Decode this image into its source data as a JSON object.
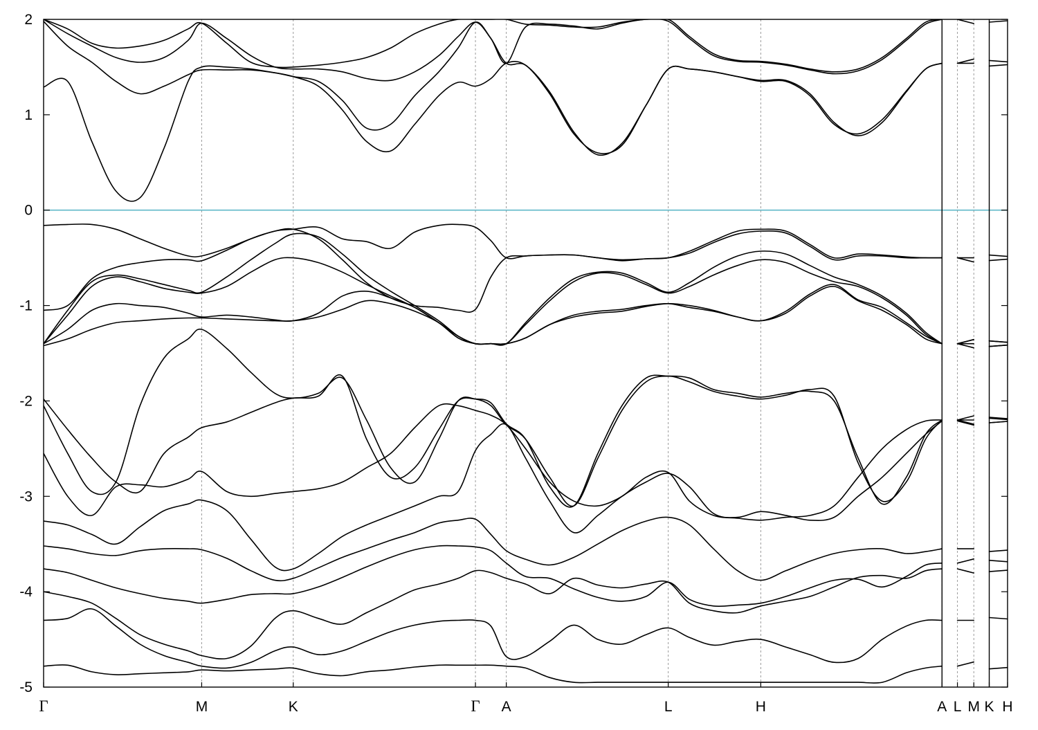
{
  "chart_data": {
    "type": "line",
    "title": "",
    "xlabel": "",
    "ylabel": "",
    "ylim": [
      -5,
      2
    ],
    "yticks": [
      "-5",
      "-4",
      "-3",
      "-2",
      "-1",
      "0",
      "1",
      "2"
    ],
    "grid": "vertical dashed lines at high-symmetry points",
    "fermi_level": {
      "y": 0,
      "color": "#5fb8c8"
    },
    "line_color": "#000000",
    "path_points": [
      {
        "label": "Γ",
        "x": 0
      },
      {
        "label": "M",
        "x": 0.164
      },
      {
        "label": "K",
        "x": 0.259
      },
      {
        "label": "Γ",
        "x": 0.448
      },
      {
        "label": "A",
        "x": 0.48
      },
      {
        "label": "L",
        "x": 0.648
      },
      {
        "label": "H",
        "x": 0.744
      },
      {
        "label": "A",
        "x": 0.932
      },
      {
        "label": "L",
        "x": 0.948
      },
      {
        "label": "M",
        "x": 0.965
      },
      {
        "label": "K",
        "x": 0.981
      },
      {
        "label": "H",
        "x": 1.0
      }
    ],
    "x": [
      0,
      0.025,
      0.05,
      0.075,
      0.1,
      0.125,
      0.15,
      0.164,
      0.19,
      0.215,
      0.24,
      0.259,
      0.285,
      0.31,
      0.335,
      0.36,
      0.385,
      0.41,
      0.43,
      0.448,
      0.464,
      0.48,
      0.5,
      0.525,
      0.55,
      0.575,
      0.6,
      0.625,
      0.648,
      0.67,
      0.695,
      0.72,
      0.744,
      0.77,
      0.795,
      0.82,
      0.845,
      0.87,
      0.895,
      0.915,
      0.932
    ],
    "series": [
      {
        "values": [
          -4.78,
          -4.77,
          -4.84,
          -4.87,
          -4.86,
          -4.85,
          -4.84,
          -4.82,
          -4.83,
          -4.82,
          -4.81,
          -4.8,
          -4.86,
          -4.88,
          -4.84,
          -4.82,
          -4.79,
          -4.77,
          -4.77,
          -4.77,
          -4.77,
          -4.78,
          -4.8,
          -4.9,
          -4.95,
          -4.95,
          -4.95,
          -4.95,
          -4.95,
          -4.95,
          -4.95,
          -4.95,
          -4.95,
          -4.95,
          -4.95,
          -4.95,
          -4.95,
          -4.95,
          -4.85,
          -4.8,
          -4.78
        ]
      },
      {
        "values": [
          -4.3,
          -4.28,
          -4.18,
          -4.36,
          -4.55,
          -4.67,
          -4.74,
          -4.78,
          -4.8,
          -4.74,
          -4.62,
          -4.58,
          -4.66,
          -4.62,
          -4.52,
          -4.42,
          -4.35,
          -4.31,
          -4.3,
          -4.3,
          -4.36,
          -4.68,
          -4.68,
          -4.52,
          -4.35,
          -4.5,
          -4.55,
          -4.45,
          -4.38,
          -4.48,
          -4.56,
          -4.52,
          -4.5,
          -4.58,
          -4.66,
          -4.74,
          -4.7,
          -4.5,
          -4.36,
          -4.3,
          -4.3
        ]
      },
      {
        "values": [
          -4.0,
          -4.05,
          -4.12,
          -4.28,
          -4.45,
          -4.55,
          -4.62,
          -4.67,
          -4.7,
          -4.57,
          -4.28,
          -4.2,
          -4.28,
          -4.34,
          -4.22,
          -4.1,
          -3.98,
          -3.92,
          -3.86,
          -3.78,
          -3.8,
          -3.86,
          -3.92,
          -4.02,
          -3.86,
          -3.93,
          -3.96,
          -3.92,
          -3.9,
          -4.12,
          -4.2,
          -4.22,
          -4.15,
          -4.1,
          -4.05,
          -3.95,
          -3.85,
          -3.83,
          -3.86,
          -3.78,
          -3.76
        ]
      },
      {
        "values": [
          -3.76,
          -3.8,
          -3.88,
          -3.96,
          -4.02,
          -4.07,
          -4.1,
          -4.12,
          -4.08,
          -4.03,
          -4.02,
          -4.02,
          -3.95,
          -3.85,
          -3.74,
          -3.64,
          -3.56,
          -3.52,
          -3.52,
          -3.53,
          -3.57,
          -3.7,
          -3.84,
          -3.86,
          -3.97,
          -4.06,
          -4.1,
          -4.05,
          -3.9,
          -4.08,
          -4.15,
          -4.14,
          -4.12,
          -4.05,
          -3.96,
          -3.88,
          -3.87,
          -3.95,
          -3.84,
          -3.72,
          -3.7
        ]
      },
      {
        "values": [
          -3.52,
          -3.55,
          -3.6,
          -3.62,
          -3.57,
          -3.55,
          -3.55,
          -3.56,
          -3.65,
          -3.78,
          -3.88,
          -3.86,
          -3.75,
          -3.64,
          -3.55,
          -3.46,
          -3.38,
          -3.28,
          -3.25,
          -3.24,
          -3.4,
          -3.57,
          -3.66,
          -3.72,
          -3.64,
          -3.5,
          -3.36,
          -3.26,
          -3.22,
          -3.3,
          -3.55,
          -3.78,
          -3.88,
          -3.78,
          -3.68,
          -3.6,
          -3.56,
          -3.55,
          -3.6,
          -3.58,
          -3.55
        ]
      },
      {
        "values": [
          -3.26,
          -3.3,
          -3.4,
          -3.5,
          -3.32,
          -3.15,
          -3.08,
          -3.04,
          -3.15,
          -3.45,
          -3.74,
          -3.76,
          -3.6,
          -3.42,
          -3.3,
          -3.2,
          -3.1,
          -3.0,
          -2.95,
          -2.52,
          -2.35,
          -2.25,
          -2.6,
          -3.05,
          -3.38,
          -3.2,
          -3.0,
          -2.85,
          -2.76,
          -2.9,
          -3.18,
          -3.22,
          -3.16,
          -3.2,
          -3.25,
          -3.22,
          -3.0,
          -2.8,
          -2.55,
          -2.35,
          -2.21
        ]
      },
      {
        "values": [
          -2.55,
          -3.0,
          -3.2,
          -2.9,
          -2.88,
          -2.9,
          -2.82,
          -2.74,
          -2.95,
          -3.0,
          -2.97,
          -2.95,
          -2.92,
          -2.85,
          -2.7,
          -2.55,
          -2.28,
          -2.05,
          -2.05,
          -2.1,
          -2.15,
          -2.25,
          -2.5,
          -2.85,
          -3.05,
          -3.1,
          -3.0,
          -2.8,
          -2.75,
          -3.05,
          -3.2,
          -3.23,
          -3.25,
          -3.22,
          -3.2,
          -3.1,
          -2.8,
          -2.5,
          -2.3,
          -2.21,
          -2.2
        ]
      },
      {
        "values": [
          -2.05,
          -2.55,
          -2.95,
          -2.85,
          -2.05,
          -1.55,
          -1.35,
          -1.25,
          -1.45,
          -1.7,
          -1.92,
          -1.97,
          -1.92,
          -1.76,
          -2.2,
          -2.7,
          -2.85,
          -2.4,
          -2.0,
          -1.98,
          -2.05,
          -2.25,
          -2.4,
          -2.8,
          -3.1,
          -2.6,
          -2.1,
          -1.8,
          -1.74,
          -1.8,
          -1.9,
          -1.95,
          -1.98,
          -1.94,
          -1.88,
          -1.95,
          -2.65,
          -3.05,
          -2.85,
          -2.4,
          -2.2
        ]
      },
      {
        "values": [
          -1.98,
          -2.3,
          -2.6,
          -2.85,
          -2.95,
          -2.55,
          -2.38,
          -2.28,
          -2.22,
          -2.12,
          -2.02,
          -1.97,
          -1.95,
          -1.74,
          -2.4,
          -2.8,
          -2.7,
          -2.3,
          -2.0,
          -1.98,
          -2.02,
          -2.24,
          -2.4,
          -2.9,
          -3.1,
          -2.55,
          -2.05,
          -1.76,
          -1.74,
          -1.76,
          -1.88,
          -1.92,
          -1.96,
          -1.92,
          -1.9,
          -2.0,
          -2.6,
          -3.08,
          -2.8,
          -2.35,
          -2.2
        ]
      },
      {
        "values": [
          -1.42,
          -1.35,
          -1.25,
          -1.18,
          -1.16,
          -1.14,
          -1.13,
          -1.13,
          -1.14,
          -1.15,
          -1.16,
          -1.16,
          -1.12,
          -1.04,
          -0.95,
          -0.98,
          -1.06,
          -1.18,
          -1.34,
          -1.4,
          -1.4,
          -1.4,
          -1.34,
          -1.2,
          -1.12,
          -1.08,
          -1.06,
          -1.01,
          -0.98,
          -1.0,
          -1.05,
          -1.12,
          -1.16,
          -1.08,
          -0.9,
          -0.8,
          -0.95,
          -1.05,
          -1.2,
          -1.35,
          -1.4
        ]
      },
      {
        "values": [
          -1.4,
          -1.25,
          -1.05,
          -0.98,
          -1.0,
          -1.02,
          -1.08,
          -1.12,
          -1.1,
          -1.12,
          -1.15,
          -1.16,
          -1.08,
          -0.9,
          -0.85,
          -0.92,
          -1.02,
          -1.18,
          -1.34,
          -1.4,
          -1.4,
          -1.4,
          -1.34,
          -1.2,
          -1.1,
          -1.06,
          -1.04,
          -1.0,
          -0.98,
          -1.02,
          -1.06,
          -1.12,
          -1.16,
          -1.06,
          -0.88,
          -0.78,
          -0.94,
          -1.02,
          -1.18,
          -1.32,
          -1.4
        ]
      },
      {
        "values": [
          -1.4,
          -1.1,
          -0.8,
          -0.7,
          -0.75,
          -0.82,
          -0.86,
          -0.87,
          -0.8,
          -0.65,
          -0.52,
          -0.5,
          -0.55,
          -0.65,
          -0.78,
          -0.9,
          -1.02,
          -1.18,
          -1.32,
          -1.4,
          -1.4,
          -1.4,
          -1.2,
          -0.95,
          -0.75,
          -0.66,
          -0.68,
          -0.78,
          -0.87,
          -0.8,
          -0.68,
          -0.58,
          -0.52,
          -0.55,
          -0.66,
          -0.75,
          -0.8,
          -0.92,
          -1.1,
          -1.3,
          -1.4
        ]
      },
      {
        "values": [
          -1.4,
          -1.05,
          -0.75,
          -0.68,
          -0.72,
          -0.78,
          -0.84,
          -0.86,
          -0.7,
          -0.52,
          -0.35,
          -0.25,
          -0.28,
          -0.46,
          -0.68,
          -0.85,
          -1.0,
          -1.16,
          -1.32,
          -1.4,
          -1.4,
          -1.4,
          -1.18,
          -0.92,
          -0.72,
          -0.65,
          -0.66,
          -0.76,
          -0.86,
          -0.76,
          -0.6,
          -0.48,
          -0.43,
          -0.46,
          -0.58,
          -0.7,
          -0.78,
          -0.9,
          -1.08,
          -1.28,
          -1.4
        ]
      },
      {
        "values": [
          -1.05,
          -1.0,
          -0.72,
          -0.6,
          -0.55,
          -0.52,
          -0.52,
          -0.53,
          -0.42,
          -0.3,
          -0.22,
          -0.2,
          -0.3,
          -0.52,
          -0.76,
          -0.92,
          -1.0,
          -1.02,
          -1.05,
          -1.04,
          -0.7,
          -0.5,
          -0.48,
          -0.47,
          -0.47,
          -0.5,
          -0.53,
          -0.51,
          -0.5,
          -0.45,
          -0.34,
          -0.25,
          -0.22,
          -0.24,
          -0.38,
          -0.52,
          -0.48,
          -0.48,
          -0.5,
          -0.5,
          -0.5
        ]
      },
      {
        "values": [
          -0.16,
          -0.15,
          -0.15,
          -0.2,
          -0.3,
          -0.4,
          -0.48,
          -0.48,
          -0.4,
          -0.3,
          -0.22,
          -0.2,
          -0.18,
          -0.3,
          -0.33,
          -0.4,
          -0.23,
          -0.16,
          -0.15,
          -0.18,
          -0.32,
          -0.5,
          -0.48,
          -0.47,
          -0.47,
          -0.5,
          -0.52,
          -0.51,
          -0.5,
          -0.43,
          -0.32,
          -0.22,
          -0.2,
          -0.22,
          -0.36,
          -0.5,
          -0.46,
          -0.47,
          -0.49,
          -0.5,
          -0.5
        ]
      },
      {
        "values": [
          1.29,
          1.35,
          0.72,
          0.2,
          0.13,
          0.65,
          1.35,
          1.5,
          1.5,
          1.48,
          1.44,
          1.4,
          1.3,
          1.05,
          0.72,
          0.62,
          0.9,
          1.2,
          1.34,
          1.3,
          1.38,
          1.54,
          1.52,
          1.22,
          0.8,
          0.6,
          0.68,
          1.1,
          1.48,
          1.48,
          1.45,
          1.4,
          1.35,
          1.35,
          1.2,
          0.9,
          0.8,
          0.95,
          1.25,
          1.48,
          1.54
        ]
      },
      {
        "values": [
          1.98,
          1.72,
          1.55,
          1.35,
          1.22,
          1.3,
          1.42,
          1.47,
          1.47,
          1.47,
          1.44,
          1.4,
          1.35,
          1.15,
          0.86,
          0.9,
          1.2,
          1.45,
          1.7,
          1.97,
          1.8,
          1.54,
          1.52,
          1.24,
          0.82,
          0.58,
          0.7,
          1.1,
          1.48,
          1.48,
          1.45,
          1.4,
          1.36,
          1.36,
          1.22,
          0.92,
          0.78,
          0.92,
          1.24,
          1.48,
          1.54
        ]
      },
      {
        "values": [
          2.0,
          1.85,
          1.72,
          1.6,
          1.55,
          1.6,
          1.78,
          1.96,
          1.8,
          1.62,
          1.5,
          1.48,
          1.48,
          1.45,
          1.38,
          1.36,
          1.45,
          1.62,
          1.82,
          1.97,
          1.8,
          1.54,
          1.92,
          1.95,
          1.93,
          1.9,
          1.96,
          2.0,
          1.98,
          1.8,
          1.62,
          1.56,
          1.55,
          1.52,
          1.47,
          1.43,
          1.46,
          1.58,
          1.78,
          1.95,
          2.0
        ]
      },
      {
        "values": [
          2.0,
          1.9,
          1.75,
          1.7,
          1.72,
          1.78,
          1.9,
          1.96,
          1.75,
          1.55,
          1.5,
          1.5,
          1.52,
          1.55,
          1.6,
          1.7,
          1.85,
          1.95,
          2.0,
          2.0,
          2.0,
          2.0,
          1.95,
          1.94,
          1.92,
          1.92,
          1.97,
          2.0,
          2.0,
          1.82,
          1.64,
          1.57,
          1.56,
          1.53,
          1.48,
          1.45,
          1.48,
          1.6,
          1.8,
          1.97,
          2.0
        ]
      }
    ]
  }
}
